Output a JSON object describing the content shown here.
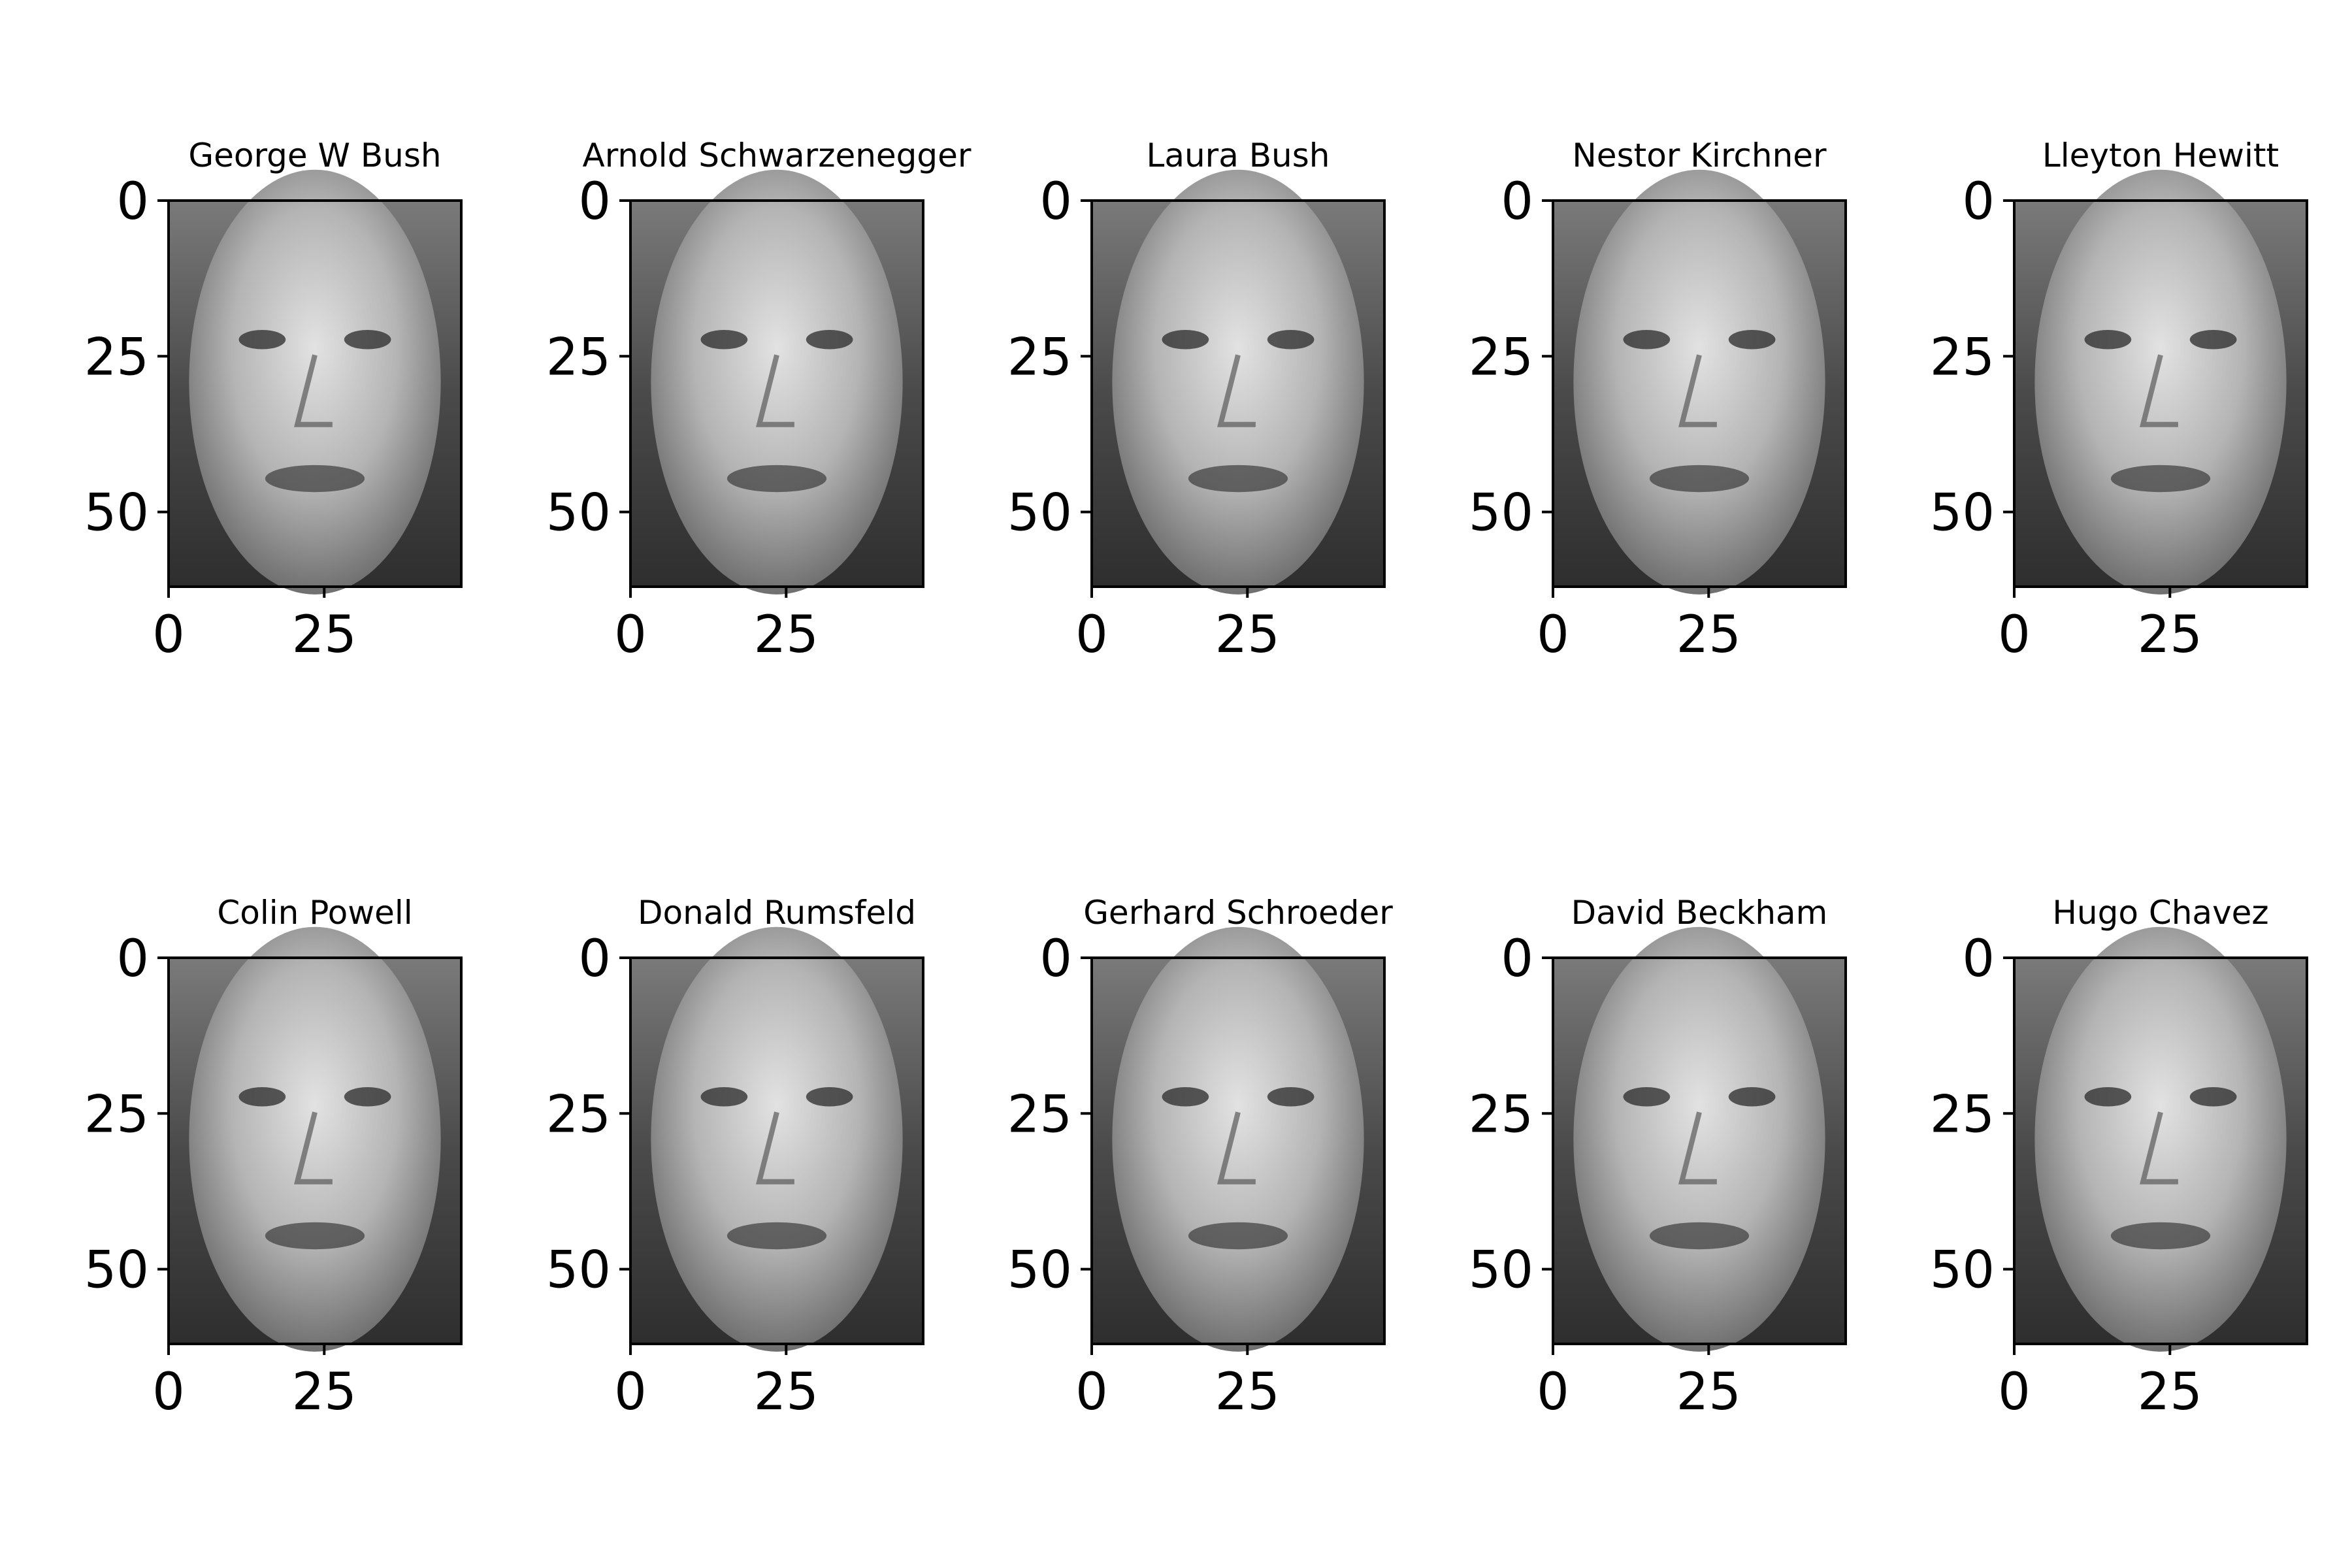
{
  "chart_data": {
    "type": "image-grid",
    "grid": {
      "rows": 2,
      "cols": 5
    },
    "image_extent": {
      "x": [
        0,
        47
      ],
      "y": [
        0,
        62
      ]
    },
    "xticks": [
      0,
      25
    ],
    "yticks": [
      0,
      25,
      50
    ],
    "colormap": "gray",
    "panels": [
      {
        "title": "George W Bush",
        "subject": "face-george-w-bush"
      },
      {
        "title": "Arnold Schwarzenegger",
        "subject": "face-arnold-schwarzenegger"
      },
      {
        "title": "Laura Bush",
        "subject": "face-laura-bush"
      },
      {
        "title": "Nestor Kirchner",
        "subject": "face-nestor-kirchner"
      },
      {
        "title": "Lleyton Hewitt",
        "subject": "face-lleyton-hewitt"
      },
      {
        "title": "Colin Powell",
        "subject": "face-colin-powell"
      },
      {
        "title": "Donald Rumsfeld",
        "subject": "face-donald-rumsfeld"
      },
      {
        "title": "Gerhard Schroeder",
        "subject": "face-gerhard-schroeder"
      },
      {
        "title": "David Beckham",
        "subject": "face-david-beckham"
      },
      {
        "title": "Hugo Chavez",
        "subject": "face-hugo-chavez"
      }
    ]
  }
}
